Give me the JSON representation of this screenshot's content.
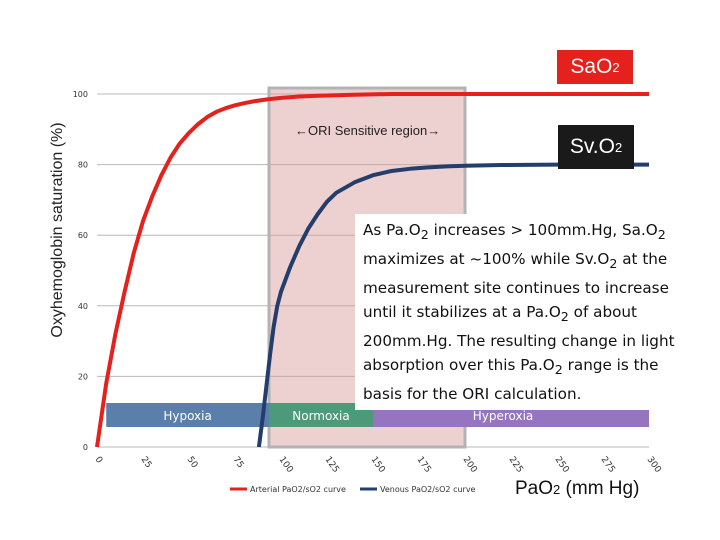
{
  "chart_data": {
    "type": "line",
    "ylabel": "Oxyhemoglobin saturation (%)",
    "xlabel": "PaO2 (mm Hg)",
    "xlabel_main": "PaO",
    "xlabel_sub": "2",
    "xlabel_unit": " (mm Hg)",
    "xlim": [
      0,
      300
    ],
    "ylim": [
      0,
      100
    ],
    "x_ticks": [
      "0",
      "25",
      "50",
      "75",
      "100",
      "125",
      "150",
      "175",
      "200",
      "225",
      "250",
      "275",
      "300"
    ],
    "y_ticks": [
      "0",
      "20",
      "40",
      "60",
      "80",
      "100"
    ],
    "series": [
      {
        "name": "Arterial PaO2/sO2 curve",
        "color": "#e4211c",
        "x": [
          0,
          5,
          10,
          15,
          20,
          25,
          30,
          35,
          40,
          45,
          50,
          55,
          60,
          65,
          70,
          75,
          80,
          85,
          90,
          95,
          100,
          110,
          120,
          140,
          160,
          180,
          200,
          250,
          300
        ],
        "y": [
          0,
          18,
          32,
          44,
          55,
          64,
          71,
          77,
          82,
          86,
          89,
          91.5,
          93.5,
          95,
          96,
          96.8,
          97.4,
          97.9,
          98.3,
          98.6,
          98.9,
          99.3,
          99.5,
          99.8,
          100,
          100,
          100,
          100,
          100
        ]
      },
      {
        "name": "Venous PaO2/sO2 curve",
        "color": "#243e6b",
        "x": [
          88,
          90,
          92,
          94,
          96,
          98,
          100,
          105,
          110,
          115,
          120,
          125,
          130,
          140,
          150,
          160,
          170,
          180,
          190,
          200,
          220,
          250,
          300
        ],
        "y": [
          0,
          8,
          17,
          26,
          34,
          40,
          44,
          51,
          57,
          62,
          66,
          69.5,
          72,
          75,
          77,
          78.2,
          78.8,
          79.2,
          79.5,
          79.7,
          79.9,
          80,
          80
        ]
      }
    ],
    "sensitive_region": {
      "label": "←ORI Sensitive region→",
      "x_range": [
        100,
        200
      ]
    },
    "zones": [
      {
        "label": "Hypoxia",
        "x_range": [
          5,
          100
        ],
        "color": "#5b7fab"
      },
      {
        "label": "Normoxia",
        "x_range": [
          100,
          150
        ],
        "color": "#4c9a7a"
      },
      {
        "label": "Hyperoxia",
        "x_range": [
          150,
          300
        ],
        "color": "#9575c0"
      }
    ],
    "legend_position": "bottom-center",
    "grid": true
  },
  "labels": {
    "sao2": "SaO",
    "sao2_sub": "2",
    "svo2": "Sv.O",
    "svo2_sub": "2"
  },
  "annotation": {
    "line1_a": "As Pa.O",
    "line1_sub": "2",
    "line1_b": " increases > 100mm.Hg, Sa.O",
    "line1_sub2": "2",
    "line2_a": "maximizes at ~100% while Sv.O",
    "line2_sub": "2",
    "line2_b": " at the",
    "line3": "measurement site continues to increase",
    "line4_a": "until it stabilizes at a Pa.O",
    "line4_sub": "2",
    "line4_b": " of about",
    "line5": "200mm.Hg. The resulting change in light",
    "line6_a": "absorption over this Pa.O",
    "line6_sub": "2",
    "line6_b": " range is the",
    "line7": "basis for the ORI calculation."
  }
}
